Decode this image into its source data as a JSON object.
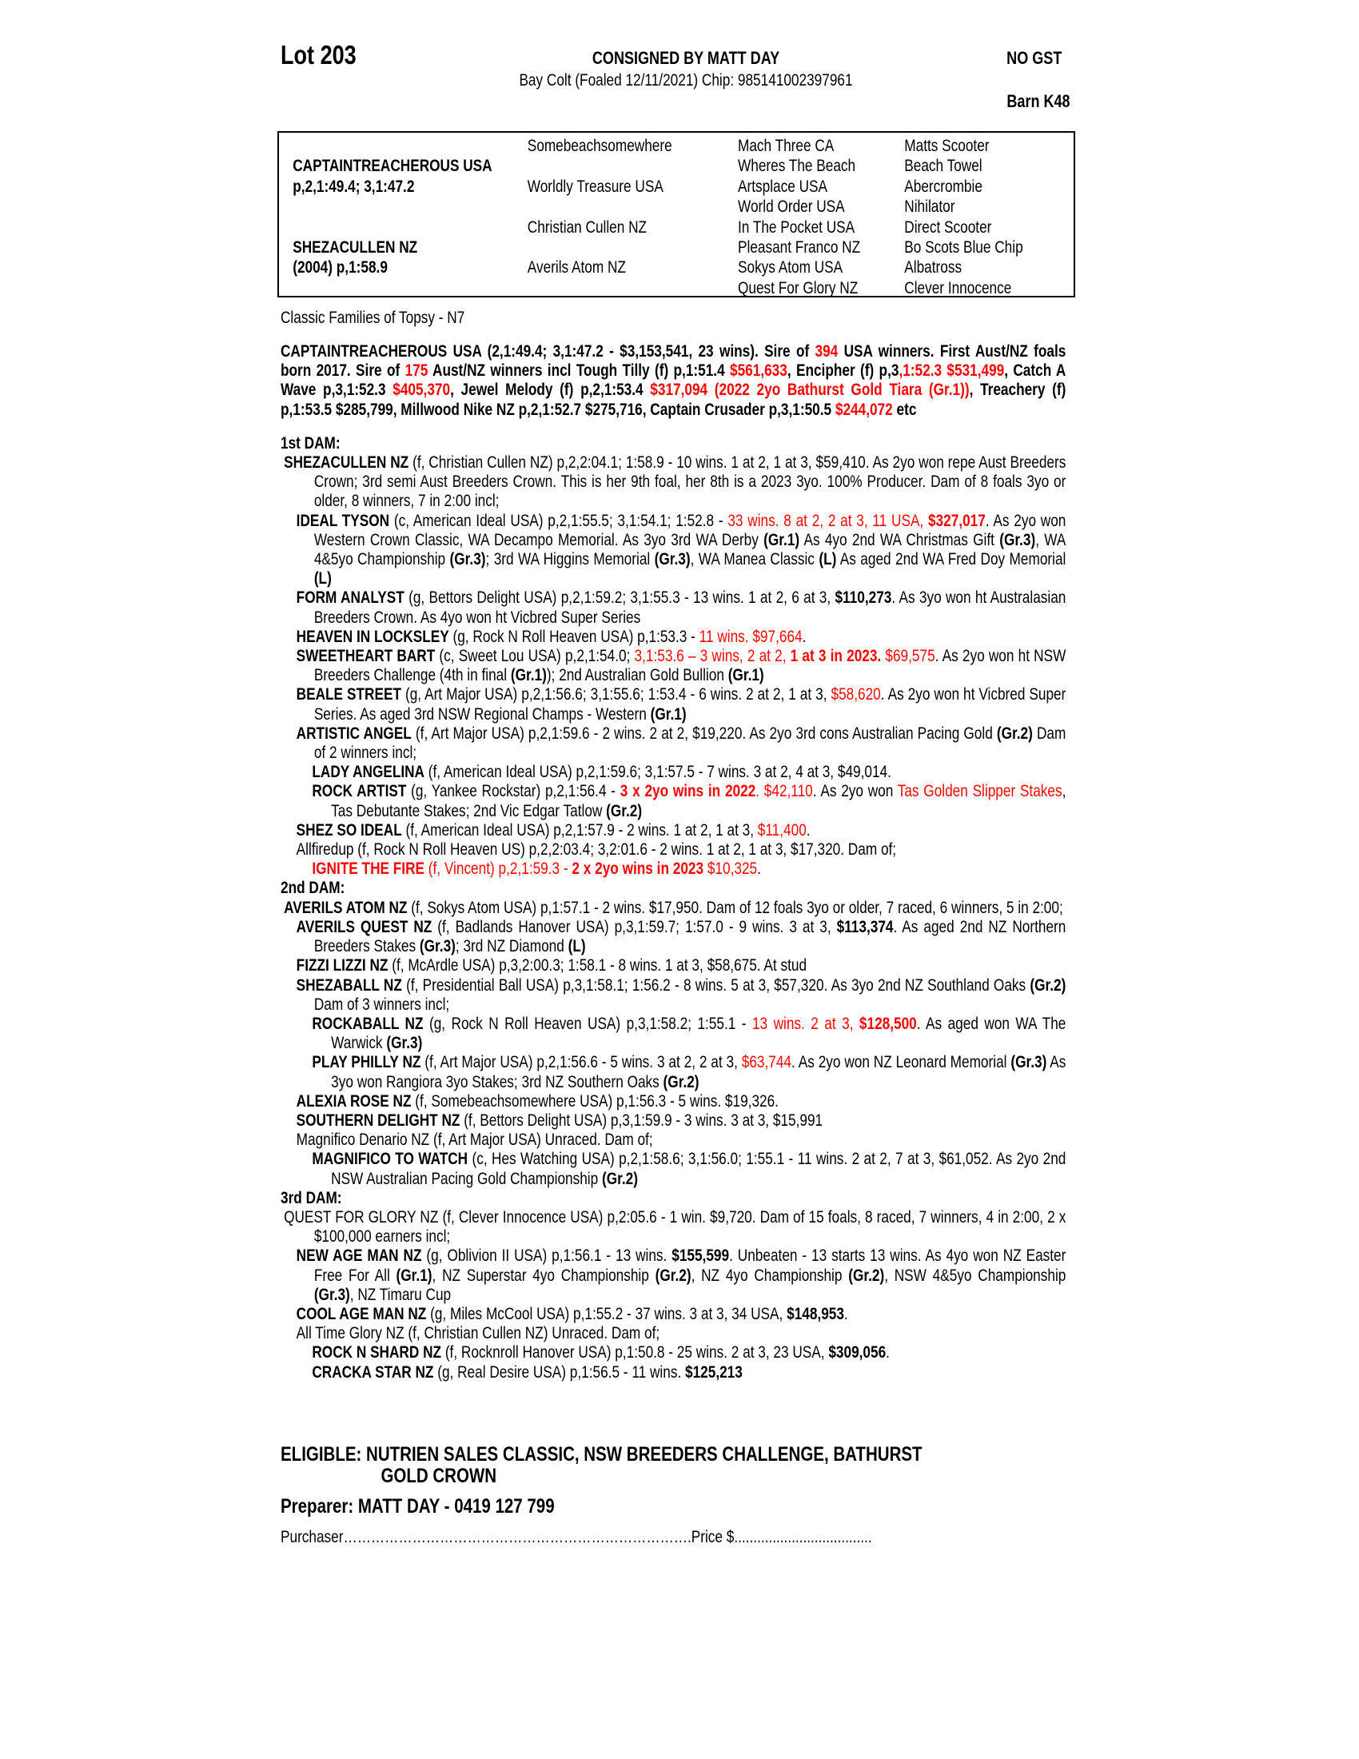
{
  "header": {
    "lot": "Lot 203",
    "consignor": "CONSIGNED BY MATT DAY",
    "gst": "NO GST",
    "description": "Bay Colt (Foaled 12/11/2021) Chip: 985141002397961",
    "barn": "Barn K48"
  },
  "pedigree": {
    "sire": "CAPTAINTREACHEROUS USA",
    "sire_record": "p,2,1:49.4; 3,1:47.2",
    "dam": "SHEZACULLEN NZ",
    "dam_record": "(2004) p,1:58.9",
    "gen2": [
      "Somebeachsomewhere",
      "Worldly Treasure USA",
      "Christian Cullen NZ",
      "Averils Atom NZ"
    ],
    "gen3": [
      "Mach Three CA",
      "Wheres The Beach",
      "Artsplace USA",
      "World Order USA",
      "In The Pocket USA",
      "Pleasant Franco NZ",
      "Sokys Atom USA",
      "Quest For Glory NZ"
    ],
    "gen4": [
      "Matts Scooter",
      "Beach Towel",
      "Abercrombie",
      "Nihilator",
      "Direct Scooter",
      "Bo Scots Blue Chip",
      "Albatross",
      "Clever Innocence"
    ]
  },
  "family": "Classic Families of Topsy - N7",
  "sire_paragraph": [
    [
      "CAPTAINTREACHEROUS USA (2,1:49.4; 3,1:47.2 - $3,153,541, 23 wins). Sire of ",
      ""
    ],
    [
      "394",
      "r"
    ],
    [
      " USA winners. First Aust/NZ foals born 2017. Sire of ",
      ""
    ],
    [
      "175",
      "r"
    ],
    [
      " Aust/NZ winners incl Tough Tilly (f) p,1:51.4 ",
      ""
    ],
    [
      "$561,633",
      "r"
    ],
    [
      ", Encipher (f) p,3",
      ""
    ],
    [
      ",1:52.3 $531,499",
      "r"
    ],
    [
      ", Catch A Wave p,3,1:52.3 ",
      ""
    ],
    [
      "$405,370",
      "r"
    ],
    [
      ", Jewel Melody (f) p,2,1:53.4 ",
      ""
    ],
    [
      "$317,094 (2022 2yo Bathurst Gold Tiara (Gr.1))",
      "r"
    ],
    [
      ", Treachery (f) p,1:53.5 $285,799, Millwood Nike NZ p,2,1:52.7 $275,716, Captain Crusader p,3,1:50.5 ",
      ""
    ],
    [
      "$244,072",
      "r"
    ],
    [
      " etc",
      ""
    ]
  ],
  "sections": [
    {
      "heading": "1st DAM:",
      "entries": [
        {
          "level": 0,
          "runs": [
            [
              "SHEZACULLEN NZ",
              "b"
            ],
            [
              " (f, Christian Cullen NZ) p,2,2:04.1; 1:58.9 - 10 wins. 1 at 2, 1 at 3, $59,410. As 2yo won repe Aust Breeders Crown; 3rd semi Aust Breeders Crown. This is her 9th foal, her 8th is a 2023 3yo. 100% Producer. Dam of 8 foals 3yo or older, 8 winners, 7 in 2:00 incl;",
              ""
            ]
          ]
        },
        {
          "level": 1,
          "runs": [
            [
              "IDEAL TYSON",
              "b"
            ],
            [
              " (c, American Ideal USA) p,2,1:55.5; 3,1:54.1; 1:52.8 - ",
              ""
            ],
            [
              "33 wins. 8 at 2, 2 at 3, 11 USA, ",
              "r"
            ],
            [
              "$327,017",
              "rb"
            ],
            [
              ". As 2yo won Western Crown Classic, WA Decampo Memorial. As 3yo 3rd WA Derby ",
              ""
            ],
            [
              "(Gr.1)",
              "b"
            ],
            [
              " As 4yo 2nd WA Christmas Gift ",
              ""
            ],
            [
              "(Gr.3)",
              "b"
            ],
            [
              ", WA 4&5yo Championship ",
              ""
            ],
            [
              "(Gr.3)",
              "b"
            ],
            [
              "; 3rd WA Higgins Memorial ",
              ""
            ],
            [
              "(Gr.3)",
              "b"
            ],
            [
              ", WA Manea Classic ",
              ""
            ],
            [
              "(L)",
              "b"
            ],
            [
              " As aged 2nd WA Fred Doy Memorial ",
              ""
            ],
            [
              "(L)",
              "b"
            ]
          ]
        },
        {
          "level": 1,
          "runs": [
            [
              "FORM ANALYST",
              "b"
            ],
            [
              " (g, Bettors Delight USA) p,2,1:59.2; 3,1:55.3 - 13 wins. 1 at 2, 6 at 3, ",
              ""
            ],
            [
              "$110,273",
              "b"
            ],
            [
              ". As 3yo won ht Australasian Breeders Crown. As 4yo won ht Vicbred Super Series",
              ""
            ]
          ]
        },
        {
          "level": 1,
          "runs": [
            [
              "HEAVEN IN LOCKSLEY",
              "b"
            ],
            [
              " (g, Rock N Roll Heaven USA) p,1:53.3 - ",
              ""
            ],
            [
              "11 wins. $97,664",
              "r"
            ],
            [
              ".",
              ""
            ]
          ]
        },
        {
          "level": 1,
          "runs": [
            [
              "SWEETHEART BART",
              "b"
            ],
            [
              " (c, Sweet Lou USA) p,2,1:54.0; ",
              ""
            ],
            [
              "3,1:53.6 – 3 wins, 2 at 2, ",
              "r"
            ],
            [
              "1 at 3 in 2023.",
              "rb"
            ],
            [
              " ",
              ""
            ],
            [
              "$69,575",
              "r"
            ],
            [
              ". As 2yo won ht NSW Breeders Challenge (4th in final ",
              ""
            ],
            [
              "(Gr.1)",
              "b"
            ],
            [
              "); 2nd Australian Gold Bullion ",
              ""
            ],
            [
              "(Gr.1)",
              "b"
            ]
          ]
        },
        {
          "level": 1,
          "runs": [
            [
              "BEALE STREET",
              "b"
            ],
            [
              " (g, Art Major USA) p,2,1:56.6; 3,1:55.6; 1:53.4 - 6 wins. 2 at 2, 1 at 3, ",
              ""
            ],
            [
              "$58,620",
              "r"
            ],
            [
              ". As 2yo won ht Vicbred Super Series. As aged 3rd NSW Regional Champs - Western ",
              ""
            ],
            [
              "(Gr.1)",
              "b"
            ]
          ]
        },
        {
          "level": 1,
          "runs": [
            [
              "ARTISTIC ANGEL",
              "b"
            ],
            [
              " (f, Art Major USA) p,2,1:59.6 - 2 wins. 2 at 2, $19,220. As 2yo 3rd cons Australian Pacing Gold ",
              ""
            ],
            [
              "(Gr.2)",
              "b"
            ],
            [
              " Dam of 2 winners incl;",
              ""
            ]
          ]
        },
        {
          "level": 2,
          "runs": [
            [
              "LADY ANGELINA",
              "b"
            ],
            [
              " (f, American Ideal USA) p,2,1:59.6; 3,1:57.5 - 7 wins. 3 at 2, 4 at 3, $49,014.",
              ""
            ]
          ]
        },
        {
          "level": 2,
          "runs": [
            [
              "ROCK ARTIST",
              "b"
            ],
            [
              " (g, Yankee Rockstar) p,2,1:56.4 - ",
              ""
            ],
            [
              "3 x 2yo wins in 2022",
              "rb"
            ],
            [
              ". $42,110",
              "r"
            ],
            [
              ". As 2yo won ",
              ""
            ],
            [
              "Tas Golden Slipper Stakes",
              "r"
            ],
            [
              ", Tas Debutante Stakes; 2nd Vic Edgar Tatlow ",
              ""
            ],
            [
              "(Gr.2)",
              "b"
            ]
          ]
        },
        {
          "level": 1,
          "runs": [
            [
              "SHEZ SO IDEAL",
              "b"
            ],
            [
              " (f, American Ideal USA) p,2,1:57.9 - 2 wins. 1 at 2, 1 at 3, ",
              ""
            ],
            [
              "$11,400",
              "r"
            ],
            [
              ".",
              ""
            ]
          ]
        },
        {
          "level": 1,
          "runs": [
            [
              "Allfiredup (f, Rock N Roll Heaven US) p,2,2:03.4; 3,2:01.6 - 2 wins. 1 at 2, 1 at 3, $17,320. Dam of;",
              ""
            ]
          ]
        },
        {
          "level": 2,
          "runs": [
            [
              "IGNITE THE FIRE",
              "rb"
            ],
            [
              " (f, Vincent) p,2,1:59.3 - ",
              "r"
            ],
            [
              "2 x 2yo wins in 2023",
              "rb"
            ],
            [
              " $10,325",
              "r"
            ],
            [
              ".",
              ""
            ]
          ]
        }
      ]
    },
    {
      "heading": "2nd DAM:",
      "entries": [
        {
          "level": 0,
          "runs": [
            [
              "AVERILS ATOM NZ",
              "b"
            ],
            [
              " (f, Sokys Atom USA) p,1:57.1 - 2 wins. $17,950. Dam of 12 foals 3yo or older, 7 raced, 6 winners, 5 in 2:00;",
              ""
            ]
          ]
        },
        {
          "level": 1,
          "runs": [
            [
              "AVERILS QUEST NZ",
              "b"
            ],
            [
              " (f, Badlands Hanover USA) p,3,1:59.7; 1:57.0 - 9 wins. 3 at 3, ",
              ""
            ],
            [
              "$113,374",
              "b"
            ],
            [
              ". As aged 2nd NZ Northern Breeders Stakes ",
              ""
            ],
            [
              "(Gr.3)",
              "b"
            ],
            [
              "; 3rd NZ Diamond ",
              ""
            ],
            [
              "(L)",
              "b"
            ]
          ]
        },
        {
          "level": 1,
          "runs": [
            [
              "FIZZI LIZZI NZ",
              "b"
            ],
            [
              " (f, McArdle USA) p,3,2:00.3; 1:58.1 - 8 wins. 1 at 3, $58,675. At stud",
              ""
            ]
          ]
        },
        {
          "level": 1,
          "runs": [
            [
              "SHEZABALL NZ",
              "b"
            ],
            [
              " (f, Presidential Ball USA) p,3,1:58.1; 1:56.2 - 8 wins. 5 at 3, $57,320. As 3yo 2nd NZ Southland Oaks ",
              ""
            ],
            [
              "(Gr.2)",
              "b"
            ],
            [
              " Dam of 3 winners incl;",
              ""
            ]
          ]
        },
        {
          "level": 2,
          "runs": [
            [
              "ROCKABALL NZ",
              "b"
            ],
            [
              " (g, Rock N Roll Heaven USA) p,3,1:58.2; 1:55.1 - ",
              ""
            ],
            [
              "13 wins. 2 at 3, ",
              "r"
            ],
            [
              "$128,500",
              "rb"
            ],
            [
              ". As aged won WA The Warwick ",
              ""
            ],
            [
              "(Gr.3)",
              "b"
            ]
          ]
        },
        {
          "level": 2,
          "runs": [
            [
              "PLAY PHILLY NZ",
              "b"
            ],
            [
              " (f, Art Major USA) p,2,1:56.6 - 5 wins. 3 at 2, 2 at 3, ",
              ""
            ],
            [
              "$63,744",
              "r"
            ],
            [
              ". As 2yo won NZ Leonard Memorial ",
              ""
            ],
            [
              "(Gr.3)",
              "b"
            ],
            [
              " As 3yo won Rangiora 3yo Stakes; 3rd NZ Southern Oaks ",
              ""
            ],
            [
              "(Gr.2)",
              "b"
            ]
          ]
        },
        {
          "level": 1,
          "runs": [
            [
              "ALEXIA ROSE NZ",
              "b"
            ],
            [
              " (f, Somebeachsomewhere USA) p,1:56.3 - 5 wins. $19,326.",
              ""
            ]
          ]
        },
        {
          "level": 1,
          "runs": [
            [
              "SOUTHERN DELIGHT NZ",
              "b"
            ],
            [
              " (f, Bettors Delight USA) p,3,1:59.9 - 3 wins. 3 at 3, $15,991",
              ""
            ]
          ]
        },
        {
          "level": 1,
          "runs": [
            [
              "Magnifico Denario NZ (f, Art Major USA) Unraced. Dam of;",
              ""
            ]
          ]
        },
        {
          "level": 2,
          "runs": [
            [
              "MAGNIFICO TO WATCH",
              "b"
            ],
            [
              " (c, Hes Watching USA) p,2,1:58.6; 3,1:56.0; 1:55.1 - 11 wins. 2 at 2, 7 at 3, $61,052. As 2yo 2nd NSW Australian Pacing Gold Championship ",
              ""
            ],
            [
              "(Gr.2)",
              "b"
            ]
          ]
        }
      ]
    },
    {
      "heading": "3rd DAM:",
      "entries": [
        {
          "level": 0,
          "runs": [
            [
              "QUEST FOR GLORY NZ (f, Clever Innocence USA) p,2:05.6 - 1 win. $9,720. Dam of 15 foals, 8 raced, 7 winners, 4 in 2:00, 2 x $100,000 earners incl;",
              ""
            ]
          ]
        },
        {
          "level": 1,
          "runs": [
            [
              "NEW AGE MAN NZ",
              "b"
            ],
            [
              " (g, Oblivion II USA) p,1:56.1 - 13 wins. ",
              ""
            ],
            [
              "$155,599",
              "b"
            ],
            [
              ". Unbeaten - 13 starts 13 wins. As 4yo won NZ Easter Free For All ",
              ""
            ],
            [
              "(Gr.1)",
              "b"
            ],
            [
              ", NZ Superstar 4yo Championship ",
              ""
            ],
            [
              "(Gr.2)",
              "b"
            ],
            [
              ", NZ 4yo Championship ",
              ""
            ],
            [
              "(Gr.2)",
              "b"
            ],
            [
              ", NSW 4&5yo Championship ",
              ""
            ],
            [
              "(Gr.3)",
              "b"
            ],
            [
              ", NZ Timaru Cup",
              ""
            ]
          ]
        },
        {
          "level": 1,
          "runs": [
            [
              "COOL AGE MAN NZ",
              "b"
            ],
            [
              " (g, Miles McCool USA) p,1:55.2 - 37 wins. 3 at 3, 34 USA, ",
              ""
            ],
            [
              "$148,953",
              "b"
            ],
            [
              ".",
              ""
            ]
          ]
        },
        {
          "level": 1,
          "runs": [
            [
              "All Time Glory NZ (f, Christian Cullen NZ) Unraced. Dam of;",
              ""
            ]
          ]
        },
        {
          "level": 2,
          "runs": [
            [
              "ROCK N SHARD NZ",
              "b"
            ],
            [
              " (f, Rocknroll Hanover USA) p,1:50.8 - 25 wins. 2 at 3, 23 USA, ",
              ""
            ],
            [
              "$309,056",
              "b"
            ],
            [
              ".",
              ""
            ]
          ]
        },
        {
          "level": 2,
          "runs": [
            [
              "CRACKA STAR NZ",
              "b"
            ],
            [
              " (g, Real Desire USA) p,1:56.5 - 11 wins. ",
              ""
            ],
            [
              "$125,213",
              "b"
            ]
          ]
        }
      ]
    }
  ],
  "eligible": {
    "line1": "ELIGIBLE: NUTRIEN SALES CLASSIC, NSW BREEDERS CHALLENGE, BATHURST",
    "line2": "GOLD CROWN"
  },
  "preparer": "Preparer: MATT DAY - 0419 127 799",
  "purchaser_line": "Purchaser………………………………………………………………….Price $....................................",
  "colors": {
    "highlight": "#ff0000",
    "text": "#000000"
  }
}
